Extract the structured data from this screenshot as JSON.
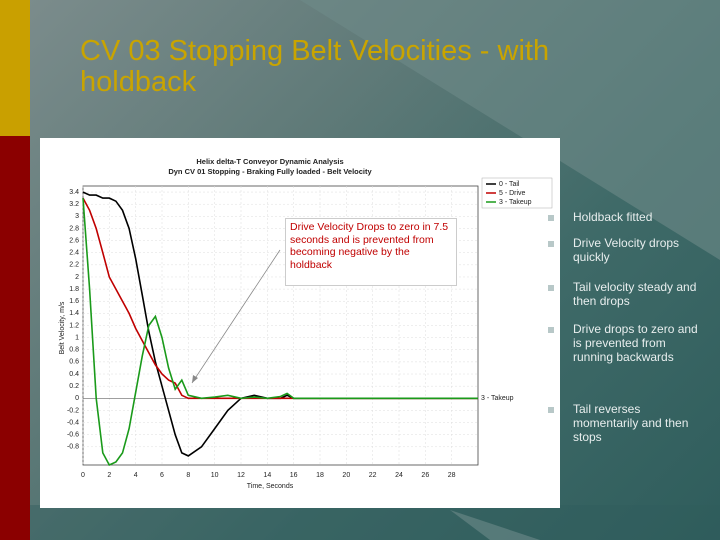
{
  "slide": {
    "title": "CV 03 Stopping Belt Velocities - with holdback",
    "bullets": [
      "Holdback fitted",
      "Drive Velocity drops quickly",
      "Tail velocity steady and then drops",
      "Drive drops to zero and is prevented from running backwards",
      "Tail reverses momentarily and then stops"
    ]
  },
  "chart_data": {
    "type": "line",
    "title": "Helix delta-T Conveyor Dynamic Analysis",
    "subtitle": "Dyn CV 01 Stopping - Braking Fully loaded - Belt Velocity",
    "x_label": "Time, Seconds",
    "y_label": "Belt Velocity, m/s",
    "annotation": "Drive Velocity Drops to zero in 7.5 seconds and is prevented from becoming negative by the holdback",
    "end_label": "3 - Takeup",
    "x": [
      0,
      0.5,
      1,
      1.5,
      2,
      2.5,
      3,
      3.5,
      4,
      4.5,
      5,
      5.5,
      6,
      6.5,
      7,
      7.5,
      8,
      9,
      10,
      11,
      12,
      13,
      14,
      15,
      15.5,
      16,
      18,
      22,
      30
    ],
    "series": [
      {
        "name": "0 - Tail",
        "color": "#000000",
        "values": [
          3.4,
          3.35,
          3.35,
          3.3,
          3.3,
          3.25,
          3.1,
          2.8,
          2.3,
          1.7,
          1.1,
          0.6,
          0.2,
          -0.2,
          -0.6,
          -0.9,
          -0.95,
          -0.8,
          -0.5,
          -0.2,
          0,
          0.05,
          0,
          0,
          0.05,
          0,
          0,
          0,
          0
        ]
      },
      {
        "name": "5 - Drive",
        "color": "#c00000",
        "values": [
          3.3,
          3.1,
          2.8,
          2.4,
          2,
          1.8,
          1.6,
          1.4,
          1.15,
          0.95,
          0.75,
          0.55,
          0.4,
          0.3,
          0.25,
          0.05,
          0,
          0,
          0,
          0,
          0,
          0,
          0,
          0,
          0,
          0,
          0,
          0,
          0
        ]
      },
      {
        "name": "3 - Takeup",
        "color": "#1a9a1a",
        "values": [
          3.3,
          1.8,
          0,
          -0.9,
          -1.1,
          -1.05,
          -0.9,
          -0.5,
          0.1,
          0.7,
          1.2,
          1.35,
          1,
          0.5,
          0.15,
          0.3,
          0.05,
          0,
          0.02,
          0.05,
          0,
          0.02,
          0,
          0.03,
          0.08,
          0,
          0,
          0,
          0
        ]
      }
    ],
    "xlim": [
      0,
      30
    ],
    "xticks": [
      0,
      2,
      4,
      6,
      8,
      10,
      12,
      14,
      16,
      18,
      20,
      22,
      24,
      26,
      28
    ],
    "ylim": [
      -1.1,
      3.5
    ],
    "yticks": [
      3.4,
      3.2,
      3,
      2.8,
      2.6,
      2.4,
      2.2,
      2,
      1.8,
      1.6,
      1.4,
      1.2,
      1,
      0.8,
      0.6,
      0.4,
      0.2,
      0,
      -0.2,
      -0.4,
      -0.6,
      -0.8
    ],
    "grid": true,
    "legend": "top-right"
  }
}
